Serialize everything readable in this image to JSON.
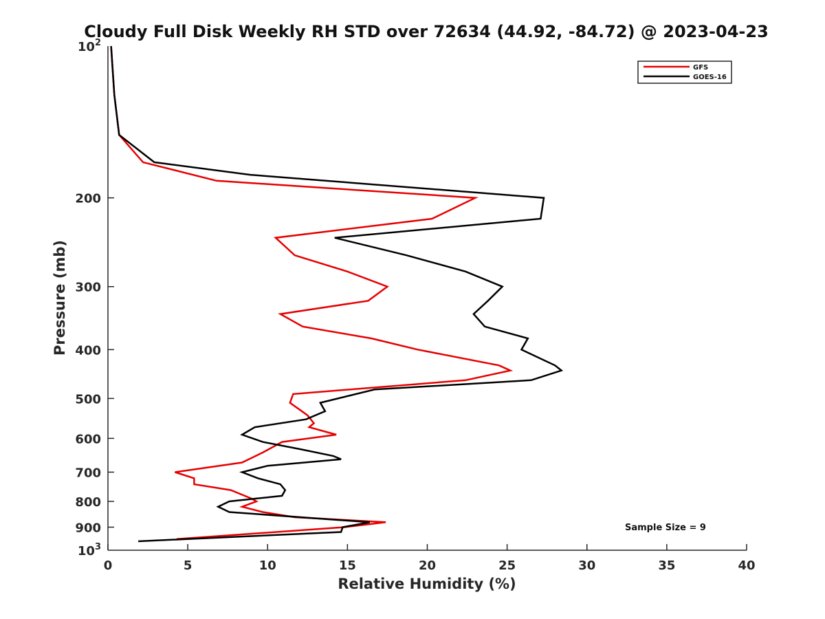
{
  "chart_data": {
    "type": "line",
    "title": "Cloudy Full Disk Weekly RH STD over 72634 (44.92, -84.72) @ 2023-04-23",
    "xlabel": "Relative Humidity (%)",
    "ylabel": "Pressure (mb)",
    "xlim": [
      0,
      40
    ],
    "ylim": [
      100,
      1000
    ],
    "y_scale": "log",
    "y_reversed": true,
    "x_ticks": [
      0,
      5,
      10,
      15,
      20,
      25,
      30,
      35,
      40
    ],
    "x_tick_labels": [
      "0",
      "5",
      "10",
      "15",
      "20",
      "25",
      "30",
      "35",
      "40"
    ],
    "y_ticks": [
      200,
      300,
      400,
      500,
      600,
      700,
      800,
      900
    ],
    "y_tick_labels": [
      "200",
      "300",
      "400",
      "500",
      "600",
      "700",
      "800",
      "900"
    ],
    "y_end_labels": [
      {
        "value": 100,
        "base": "10",
        "exp": "2"
      },
      {
        "value": 1000,
        "base": "10",
        "exp": "3"
      }
    ],
    "grid": false,
    "legend_position": "top-right",
    "annotation": "Sample Size = 9",
    "series": [
      {
        "name": "GFS",
        "color": "#e60000",
        "points": [
          [
            0.2,
            100
          ],
          [
            0.4,
            125
          ],
          [
            0.7,
            150
          ],
          [
            2.2,
            170
          ],
          [
            6.8,
            185
          ],
          [
            23.0,
            200
          ],
          [
            20.3,
            220
          ],
          [
            10.5,
            240
          ],
          [
            11.7,
            260
          ],
          [
            15.0,
            280
          ],
          [
            17.5,
            300
          ],
          [
            16.3,
            320
          ],
          [
            10.8,
            340
          ],
          [
            12.2,
            360
          ],
          [
            16.5,
            380
          ],
          [
            19.4,
            400
          ],
          [
            24.5,
            430
          ],
          [
            25.2,
            440
          ],
          [
            22.4,
            460
          ],
          [
            11.6,
            490
          ],
          [
            11.4,
            510
          ],
          [
            12.5,
            540
          ],
          [
            12.9,
            560
          ],
          [
            12.6,
            570
          ],
          [
            14.3,
            590
          ],
          [
            10.9,
            610
          ],
          [
            9.7,
            640
          ],
          [
            8.4,
            670
          ],
          [
            4.2,
            700
          ],
          [
            5.4,
            720
          ],
          [
            5.4,
            740
          ],
          [
            7.7,
            760
          ],
          [
            9.0,
            790
          ],
          [
            9.3,
            800
          ],
          [
            8.4,
            820
          ],
          [
            9.7,
            840
          ],
          [
            11.7,
            860
          ],
          [
            17.4,
            880
          ],
          [
            14.8,
            900
          ],
          [
            4.3,
            950
          ]
        ]
      },
      {
        "name": "GOES-16",
        "color": "#000000",
        "points": [
          [
            0.2,
            100
          ],
          [
            0.4,
            125
          ],
          [
            0.7,
            150
          ],
          [
            2.9,
            170
          ],
          [
            8.9,
            180
          ],
          [
            27.3,
            200
          ],
          [
            27.1,
            220
          ],
          [
            14.2,
            240
          ],
          [
            18.7,
            260
          ],
          [
            22.4,
            280
          ],
          [
            24.7,
            300
          ],
          [
            23.8,
            320
          ],
          [
            22.9,
            340
          ],
          [
            23.6,
            360
          ],
          [
            26.3,
            380
          ],
          [
            25.9,
            400
          ],
          [
            28.0,
            430
          ],
          [
            28.4,
            440
          ],
          [
            26.5,
            460
          ],
          [
            16.7,
            480
          ],
          [
            13.3,
            510
          ],
          [
            13.6,
            530
          ],
          [
            12.4,
            550
          ],
          [
            9.2,
            570
          ],
          [
            8.4,
            590
          ],
          [
            9.7,
            610
          ],
          [
            12.0,
            630
          ],
          [
            14.1,
            650
          ],
          [
            14.6,
            660
          ],
          [
            10.0,
            680
          ],
          [
            8.4,
            700
          ],
          [
            9.4,
            720
          ],
          [
            10.8,
            740
          ],
          [
            11.1,
            760
          ],
          [
            10.9,
            780
          ],
          [
            7.6,
            800
          ],
          [
            6.9,
            820
          ],
          [
            7.6,
            840
          ],
          [
            16.4,
            880
          ],
          [
            14.7,
            900
          ],
          [
            14.6,
            920
          ],
          [
            1.9,
            960
          ]
        ]
      }
    ]
  }
}
